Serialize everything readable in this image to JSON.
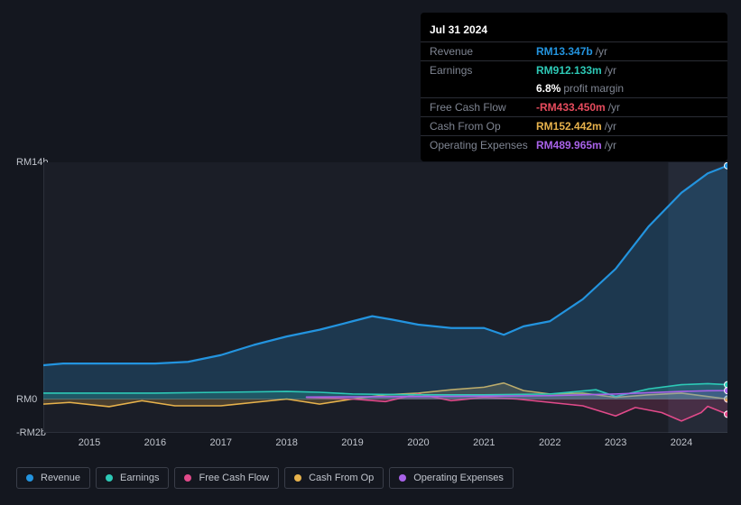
{
  "tooltip": {
    "date": "Jul 31 2024",
    "revenue_label": "Revenue",
    "revenue_value": "RM13.347b",
    "revenue_suffix": "/yr",
    "revenue_color": "#2394df",
    "earnings_label": "Earnings",
    "earnings_value": "RM912.133m",
    "earnings_suffix": "/yr",
    "earnings_color": "#2dc9b6",
    "margin_value": "6.8%",
    "margin_label": "profit margin",
    "margin_color": "#ffffff",
    "fcf_label": "Free Cash Flow",
    "fcf_value": "-RM433.450m",
    "fcf_suffix": "/yr",
    "fcf_color": "#e74c5e",
    "cfo_label": "Cash From Op",
    "cfo_value": "RM152.442m",
    "cfo_suffix": "/yr",
    "cfo_color": "#e7b24c",
    "opex_label": "Operating Expenses",
    "opex_value": "RM489.965m",
    "opex_suffix": "/yr",
    "opex_color": "#a862e8"
  },
  "chart": {
    "type": "area",
    "background_color": "#14171f",
    "plot_bg_upper": "#1b1e27",
    "plot_bg_lower": "#1b1e27",
    "highlight_bg": "#252a37",
    "axis_color": "#7f8592",
    "ylim": [
      -2,
      14
    ],
    "ytick_labels": [
      "RM14b",
      "RM0",
      "-RM2b"
    ],
    "ytick_values": [
      14,
      0,
      -2
    ],
    "years": [
      2015,
      2016,
      2017,
      2018,
      2019,
      2020,
      2021,
      2022,
      2023,
      2024
    ],
    "x_domain": [
      2014.3,
      2024.7
    ],
    "highlight_start": 2023.8,
    "series": {
      "revenue": {
        "label": "Revenue",
        "color": "#2394df",
        "fill": "#2394df",
        "fill_opacity": 0.22,
        "points": [
          [
            2014.3,
            2.0
          ],
          [
            2014.6,
            2.1
          ],
          [
            2015.0,
            2.1
          ],
          [
            2015.5,
            2.1
          ],
          [
            2016.0,
            2.1
          ],
          [
            2016.5,
            2.2
          ],
          [
            2017.0,
            2.6
          ],
          [
            2017.5,
            3.2
          ],
          [
            2018.0,
            3.7
          ],
          [
            2018.5,
            4.1
          ],
          [
            2019.0,
            4.6
          ],
          [
            2019.3,
            4.9
          ],
          [
            2019.6,
            4.7
          ],
          [
            2020.0,
            4.4
          ],
          [
            2020.5,
            4.2
          ],
          [
            2021.0,
            4.2
          ],
          [
            2021.3,
            3.8
          ],
          [
            2021.6,
            4.3
          ],
          [
            2022.0,
            4.6
          ],
          [
            2022.5,
            5.9
          ],
          [
            2023.0,
            7.7
          ],
          [
            2023.5,
            10.2
          ],
          [
            2024.0,
            12.2
          ],
          [
            2024.4,
            13.347
          ],
          [
            2024.7,
            13.8
          ]
        ]
      },
      "earnings": {
        "label": "Earnings",
        "color": "#2dc9b6",
        "fill": "#2dc9b6",
        "fill_opacity": 0.22,
        "points": [
          [
            2014.3,
            0.35
          ],
          [
            2015,
            0.35
          ],
          [
            2016,
            0.35
          ],
          [
            2017,
            0.4
          ],
          [
            2018,
            0.45
          ],
          [
            2018.5,
            0.4
          ],
          [
            2019,
            0.3
          ],
          [
            2020,
            0.25
          ],
          [
            2021,
            0.25
          ],
          [
            2022,
            0.3
          ],
          [
            2022.7,
            0.55
          ],
          [
            2023,
            0.15
          ],
          [
            2023.5,
            0.6
          ],
          [
            2024,
            0.85
          ],
          [
            2024.4,
            0.912
          ],
          [
            2024.7,
            0.85
          ]
        ]
      },
      "fcf": {
        "label": "Free Cash Flow",
        "color": "#e14a8a",
        "fill": "#e14a8a",
        "fill_opacity": 0.18,
        "start": 2018.3,
        "points": [
          [
            2018.3,
            0.1
          ],
          [
            2019,
            0.0
          ],
          [
            2019.5,
            -0.15
          ],
          [
            2020,
            0.3
          ],
          [
            2020.5,
            -0.1
          ],
          [
            2021,
            0.1
          ],
          [
            2021.5,
            0.0
          ],
          [
            2022,
            -0.2
          ],
          [
            2022.5,
            -0.4
          ],
          [
            2023,
            -1.0
          ],
          [
            2023.3,
            -0.5
          ],
          [
            2023.7,
            -0.8
          ],
          [
            2024.0,
            -1.3
          ],
          [
            2024.3,
            -0.8
          ],
          [
            2024.4,
            -0.433
          ],
          [
            2024.7,
            -0.9
          ]
        ]
      },
      "cfo": {
        "label": "Cash From Op",
        "color": "#e7b24c",
        "fill": "#e7b24c",
        "fill_opacity": 0.22,
        "points": [
          [
            2014.3,
            -0.3
          ],
          [
            2014.7,
            -0.2
          ],
          [
            2015.3,
            -0.45
          ],
          [
            2015.8,
            -0.1
          ],
          [
            2016.3,
            -0.4
          ],
          [
            2017,
            -0.4
          ],
          [
            2017.5,
            -0.2
          ],
          [
            2018,
            0.0
          ],
          [
            2018.5,
            -0.3
          ],
          [
            2019,
            0.0
          ],
          [
            2019.5,
            0.25
          ],
          [
            2020,
            0.35
          ],
          [
            2020.5,
            0.55
          ],
          [
            2021,
            0.7
          ],
          [
            2021.3,
            0.95
          ],
          [
            2021.6,
            0.5
          ],
          [
            2022,
            0.3
          ],
          [
            2022.5,
            0.35
          ],
          [
            2023,
            0.1
          ],
          [
            2023.5,
            0.25
          ],
          [
            2024,
            0.35
          ],
          [
            2024.4,
            0.152
          ],
          [
            2024.7,
            0.0
          ]
        ]
      },
      "opex": {
        "label": "Operating Expenses",
        "color": "#a862e8",
        "fill": "#a862e8",
        "fill_opacity": 0.18,
        "start": 2018.3,
        "points": [
          [
            2018.3,
            0.12
          ],
          [
            2019,
            0.13
          ],
          [
            2020,
            0.15
          ],
          [
            2021,
            0.17
          ],
          [
            2022,
            0.2
          ],
          [
            2023,
            0.3
          ],
          [
            2024,
            0.45
          ],
          [
            2024.4,
            0.49
          ],
          [
            2024.7,
            0.5
          ]
        ]
      }
    },
    "legend_order": [
      "revenue",
      "earnings",
      "fcf",
      "cfo",
      "opex"
    ]
  }
}
